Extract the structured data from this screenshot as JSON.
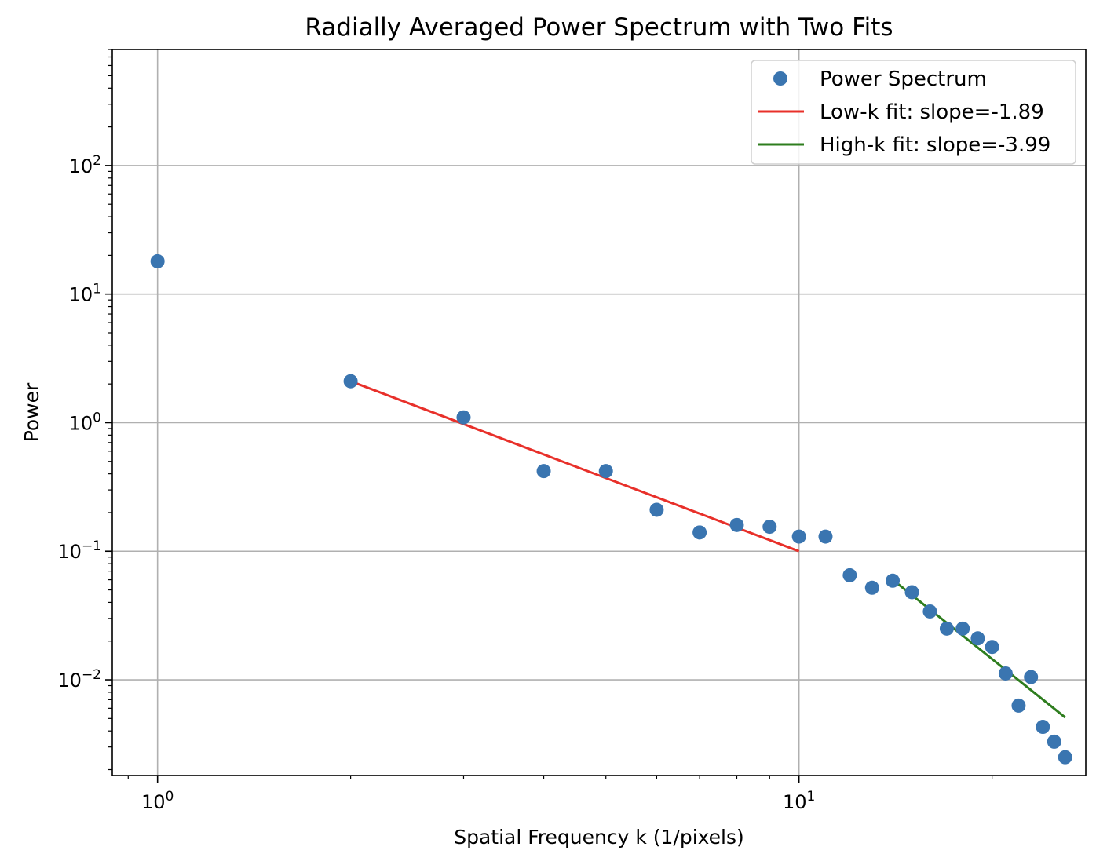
{
  "chart_data": {
    "type": "scatter",
    "title": "Radially Averaged Power Spectrum with Two Fits",
    "xlabel": "Spatial Frequency k (1/pixels)",
    "ylabel": "Power",
    "xscale": "log",
    "yscale": "log",
    "xlim": [
      0.85,
      28
    ],
    "ylim": [
      0.0018,
      800
    ],
    "grid": true,
    "legend_position": "top-right",
    "x_ticks": [
      {
        "base": "10",
        "exp": "0",
        "value": 1
      },
      {
        "base": "10",
        "exp": "1",
        "value": 10
      }
    ],
    "y_ticks": [
      {
        "base": "10",
        "exp": "−2",
        "value": 0.01
      },
      {
        "base": "10",
        "exp": "−1",
        "value": 0.1
      },
      {
        "base": "10",
        "exp": "0",
        "value": 1
      },
      {
        "base": "10",
        "exp": "1",
        "value": 10
      },
      {
        "base": "10",
        "exp": "2",
        "value": 100
      }
    ],
    "series": [
      {
        "name": "Power Spectrum",
        "kind": "scatter",
        "color": "#3a75b0",
        "points": [
          [
            1,
            18
          ],
          [
            2,
            2.1
          ],
          [
            3,
            1.1
          ],
          [
            4,
            0.42
          ],
          [
            5,
            0.42
          ],
          [
            6,
            0.21
          ],
          [
            7,
            0.14
          ],
          [
            8,
            0.16
          ],
          [
            9,
            0.155
          ],
          [
            10,
            0.13
          ],
          [
            11,
            0.13
          ],
          [
            12,
            0.065
          ],
          [
            13,
            0.052
          ],
          [
            14,
            0.059
          ],
          [
            15,
            0.048
          ],
          [
            16,
            0.034
          ],
          [
            17,
            0.025
          ],
          [
            18,
            0.025
          ],
          [
            19,
            0.021
          ],
          [
            20,
            0.018
          ],
          [
            21,
            0.0112
          ],
          [
            22,
            0.0063
          ],
          [
            23,
            0.0105
          ],
          [
            24,
            0.0043
          ],
          [
            25,
            0.0033
          ],
          [
            26,
            0.0025
          ]
        ]
      },
      {
        "name": "Low-k fit: slope=-1.89",
        "kind": "line",
        "color": "#e8302a",
        "points": [
          [
            2,
            2.1
          ],
          [
            10,
            0.1
          ]
        ]
      },
      {
        "name": "High-k fit: slope=-3.99",
        "kind": "line",
        "color": "#2e7d1e",
        "points": [
          [
            14,
            0.06
          ],
          [
            26,
            0.0051
          ]
        ]
      }
    ]
  }
}
